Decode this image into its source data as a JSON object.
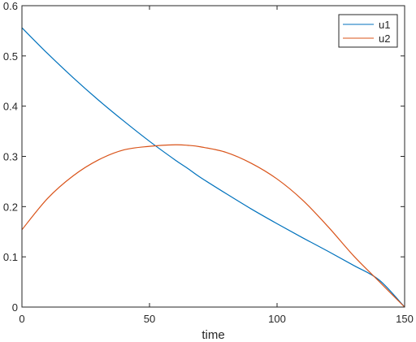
{
  "chart_data": {
    "type": "line",
    "title": "",
    "xlabel": "time",
    "ylabel": "",
    "xlim": [
      0,
      150
    ],
    "ylim": [
      0,
      0.6
    ],
    "x_ticks": [
      "0",
      "50",
      "100",
      "150"
    ],
    "y_ticks": [
      "0",
      "0.1",
      "0.2",
      "0.3",
      "0.4",
      "0.5",
      "0.6"
    ],
    "grid": false,
    "legend_position": "top-right",
    "x": [
      0,
      10,
      20,
      30,
      40,
      50,
      60,
      65,
      70,
      80,
      90,
      100,
      110,
      120,
      130,
      140,
      150
    ],
    "series": [
      {
        "name": "u1",
        "color": "#0072BD",
        "values": [
          0.556,
          0.505,
          0.457,
          0.412,
          0.37,
          0.33,
          0.293,
          0.276,
          0.258,
          0.226,
          0.195,
          0.166,
          0.138,
          0.111,
          0.083,
          0.054,
          0.0
        ]
      },
      {
        "name": "u2",
        "color": "#D95319",
        "values": [
          0.154,
          0.216,
          0.261,
          0.293,
          0.313,
          0.32,
          0.323,
          0.322,
          0.319,
          0.308,
          0.286,
          0.255,
          0.213,
          0.16,
          0.102,
          0.051,
          0.0
        ]
      }
    ]
  }
}
